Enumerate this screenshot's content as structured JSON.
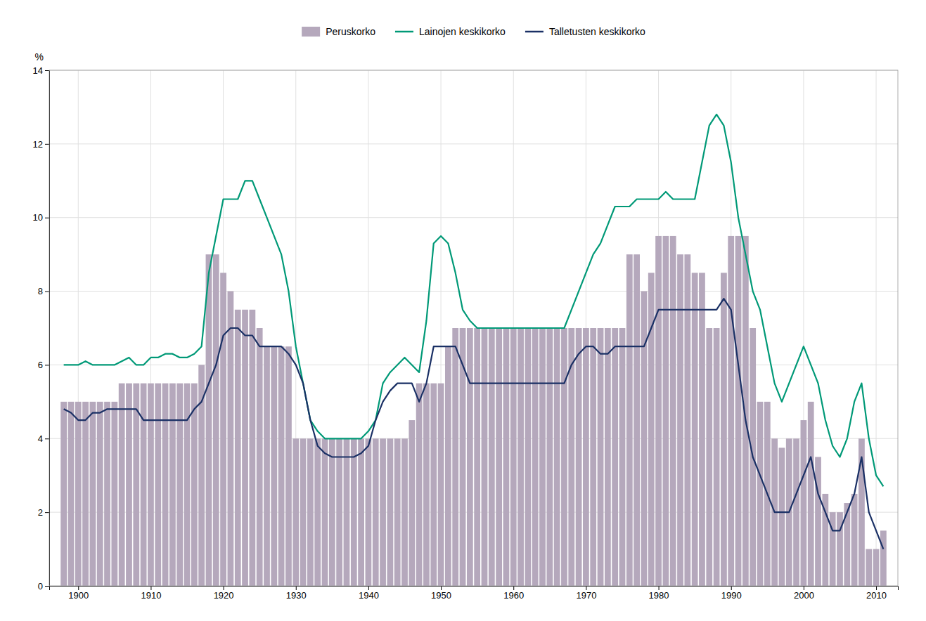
{
  "chart_data": {
    "type": "bar",
    "y_label": "%",
    "x": [
      1898,
      1899,
      1900,
      1901,
      1902,
      1903,
      1904,
      1905,
      1906,
      1907,
      1908,
      1909,
      1910,
      1911,
      1912,
      1913,
      1914,
      1915,
      1916,
      1917,
      1918,
      1919,
      1920,
      1921,
      1922,
      1923,
      1924,
      1925,
      1926,
      1927,
      1928,
      1929,
      1930,
      1931,
      1932,
      1933,
      1934,
      1935,
      1936,
      1937,
      1938,
      1939,
      1940,
      1941,
      1942,
      1943,
      1944,
      1945,
      1946,
      1947,
      1948,
      1949,
      1950,
      1951,
      1952,
      1953,
      1954,
      1955,
      1956,
      1957,
      1958,
      1959,
      1960,
      1961,
      1962,
      1963,
      1964,
      1965,
      1966,
      1967,
      1968,
      1969,
      1970,
      1971,
      1972,
      1973,
      1974,
      1975,
      1976,
      1977,
      1978,
      1979,
      1980,
      1981,
      1982,
      1983,
      1984,
      1985,
      1986,
      1987,
      1988,
      1989,
      1990,
      1991,
      1992,
      1993,
      1994,
      1995,
      1996,
      1997,
      1998,
      1999,
      2000,
      2001,
      2002,
      2003,
      2004,
      2005,
      2006,
      2007,
      2008,
      2009,
      2010,
      2011
    ],
    "series": [
      {
        "name": "Peruskorko",
        "type": "bar",
        "color": "#b5a8bc",
        "values": [
          5.0,
          5.0,
          5.0,
          5.0,
          5.0,
          5.0,
          5.0,
          5.0,
          5.5,
          5.5,
          5.5,
          5.5,
          5.5,
          5.5,
          5.5,
          5.5,
          5.5,
          5.5,
          5.5,
          6.0,
          9.0,
          9.0,
          8.5,
          8.0,
          7.5,
          7.5,
          7.5,
          7.0,
          6.5,
          6.5,
          6.5,
          6.5,
          4.0,
          4.0,
          4.0,
          4.0,
          4.0,
          4.0,
          4.0,
          4.0,
          4.0,
          4.0,
          4.0,
          4.0,
          4.0,
          4.0,
          4.0,
          4.0,
          4.5,
          5.5,
          5.5,
          5.5,
          5.5,
          6.5,
          7.0,
          7.0,
          7.0,
          7.0,
          7.0,
          7.0,
          7.0,
          7.0,
          7.0,
          7.0,
          7.0,
          7.0,
          7.0,
          7.0,
          7.0,
          7.0,
          7.0,
          7.0,
          7.0,
          7.0,
          7.0,
          7.0,
          7.0,
          7.0,
          9.0,
          9.0,
          8.0,
          8.5,
          9.5,
          9.5,
          9.5,
          9.0,
          9.0,
          8.5,
          8.5,
          7.0,
          7.0,
          8.5,
          9.5,
          9.5,
          9.5,
          7.0,
          5.0,
          5.0,
          4.0,
          3.75,
          4.0,
          4.0,
          4.5,
          5.0,
          3.5,
          2.5,
          2.0,
          2.0,
          2.25,
          2.5,
          4.0,
          1.0,
          1.0,
          1.5
        ]
      },
      {
        "name": "Lainojen keskikorko",
        "type": "line",
        "color": "#009977",
        "values": [
          6.0,
          6.0,
          6.0,
          6.1,
          6.0,
          6.0,
          6.0,
          6.0,
          6.1,
          6.2,
          6.0,
          6.0,
          6.2,
          6.2,
          6.3,
          6.3,
          6.2,
          6.2,
          6.3,
          6.5,
          8.5,
          9.5,
          10.5,
          10.5,
          10.5,
          11.0,
          11.0,
          10.5,
          10.0,
          9.5,
          9.0,
          8.0,
          6.5,
          5.5,
          4.5,
          4.2,
          4.0,
          4.0,
          4.0,
          4.0,
          4.0,
          4.0,
          4.2,
          4.5,
          5.5,
          5.8,
          6.0,
          6.2,
          6.0,
          5.8,
          7.2,
          9.3,
          9.5,
          9.3,
          8.5,
          7.5,
          7.2,
          7.0,
          7.0,
          7.0,
          7.0,
          7.0,
          7.0,
          7.0,
          7.0,
          7.0,
          7.0,
          7.0,
          7.0,
          7.0,
          7.5,
          8.0,
          8.5,
          9.0,
          9.3,
          9.8,
          10.3,
          10.3,
          10.3,
          10.5,
          10.5,
          10.5,
          10.5,
          10.7,
          10.5,
          10.5,
          10.5,
          10.5,
          11.5,
          12.5,
          12.8,
          12.5,
          11.5,
          10.0,
          9.0,
          8.0,
          7.5,
          6.5,
          5.5,
          5.0,
          5.5,
          6.0,
          6.5,
          6.0,
          5.5,
          4.5,
          3.8,
          3.5,
          4.0,
          5.0,
          5.5,
          4.0,
          3.0,
          2.7
        ]
      },
      {
        "name": "Talletusten keskikorko",
        "type": "line",
        "color": "#1a3065",
        "values": [
          4.8,
          4.7,
          4.5,
          4.5,
          4.7,
          4.7,
          4.8,
          4.8,
          4.8,
          4.8,
          4.8,
          4.5,
          4.5,
          4.5,
          4.5,
          4.5,
          4.5,
          4.5,
          4.8,
          5.0,
          5.5,
          6.0,
          6.8,
          7.0,
          7.0,
          6.8,
          6.8,
          6.5,
          6.5,
          6.5,
          6.5,
          6.3,
          6.0,
          5.5,
          4.5,
          3.8,
          3.6,
          3.5,
          3.5,
          3.5,
          3.5,
          3.6,
          3.8,
          4.5,
          5.0,
          5.3,
          5.5,
          5.5,
          5.5,
          5.0,
          5.5,
          6.5,
          6.5,
          6.5,
          6.5,
          6.0,
          5.5,
          5.5,
          5.5,
          5.5,
          5.5,
          5.5,
          5.5,
          5.5,
          5.5,
          5.5,
          5.5,
          5.5,
          5.5,
          5.5,
          6.0,
          6.3,
          6.5,
          6.5,
          6.3,
          6.3,
          6.5,
          6.5,
          6.5,
          6.5,
          6.5,
          7.0,
          7.5,
          7.5,
          7.5,
          7.5,
          7.5,
          7.5,
          7.5,
          7.5,
          7.5,
          7.8,
          7.5,
          6.0,
          4.5,
          3.5,
          3.0,
          2.5,
          2.0,
          2.0,
          2.0,
          2.5,
          3.0,
          3.5,
          2.5,
          2.0,
          1.5,
          1.5,
          2.0,
          2.5,
          3.5,
          2.0,
          1.5,
          1.0
        ]
      }
    ],
    "xlim": [
      1896,
      2013
    ],
    "xticks": [
      1900,
      1910,
      1920,
      1930,
      1940,
      1950,
      1960,
      1970,
      1980,
      1990,
      2000,
      2010
    ],
    "ylim": [
      0,
      14
    ],
    "yticks": [
      0,
      2,
      4,
      6,
      8,
      10,
      12,
      14
    ],
    "grid": true,
    "legend": "top"
  }
}
